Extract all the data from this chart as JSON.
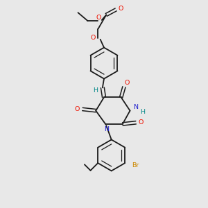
{
  "background_color": "#e8e8e8",
  "bond_color": "#1a1a1a",
  "oxygen_color": "#ee1100",
  "nitrogen_color": "#1a1acc",
  "bromine_color": "#cc8800",
  "teal_color": "#008888",
  "figsize": [
    3.0,
    3.0
  ],
  "dpi": 100,
  "xlim": [
    60,
    240
  ],
  "ylim": [
    15,
    295
  ]
}
